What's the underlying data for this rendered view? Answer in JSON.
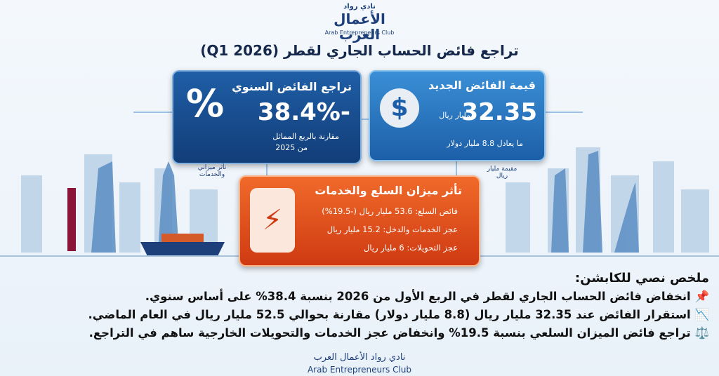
{
  "logo": {
    "line1": "نادي رواد",
    "line2": "الأعمال العرب",
    "line3": "Arab Entrepreneurs Club"
  },
  "title": "تراجع فائض الحساب الجاري لقطر (Q1 2026)",
  "surplus_card": {
    "heading": "قيمة الفائض الجديد",
    "value": "32.35",
    "unit": "مليار ريال",
    "note": "ما يعادل 8.8 مليار دولار"
  },
  "decline_card": {
    "heading": "تراجع الفائض السنوي",
    "value": "38.4%-",
    "note1": "مقارنة بالربع المماثل",
    "note2": "من 2025"
  },
  "side_labels": {
    "left": "تأثر ميزاني والخدمات",
    "right": "مقيمة مليار ريال"
  },
  "balance_card": {
    "heading": "تأثر ميزان السلع والخدمات",
    "items": [
      "فائض السلع: 53.6 مليار ريال (-19.5%)",
      "عجز الخدمات والدخل: 15.2 مليار ريال",
      "عجز التحويلات: 6 مليار ريال"
    ]
  },
  "summary": {
    "heading": "ملخص نصي للكابشن:",
    "items": [
      "📌 انخفاض فائض الحساب الجاري لقطر في الربع الأول من 2026 بنسبة 38.4% على أساس سنوي.",
      "📉 استقرار الفائض عند 32.35 مليار ريال (8.8 مليار دولار) مقارنة بحوالي 52.5 مليار ريال في العام الماضي.",
      "⚖️ تراجع فائض الميزان السلعي بنسبة 19.5% وانخفاض عجز الخدمات والتحويلات الخارجية ساهم في التراجع."
    ]
  },
  "footer": {
    "line1": "نادي رواد الأعمال العرب",
    "line2": "Arab Entrepreneurs Club"
  }
}
